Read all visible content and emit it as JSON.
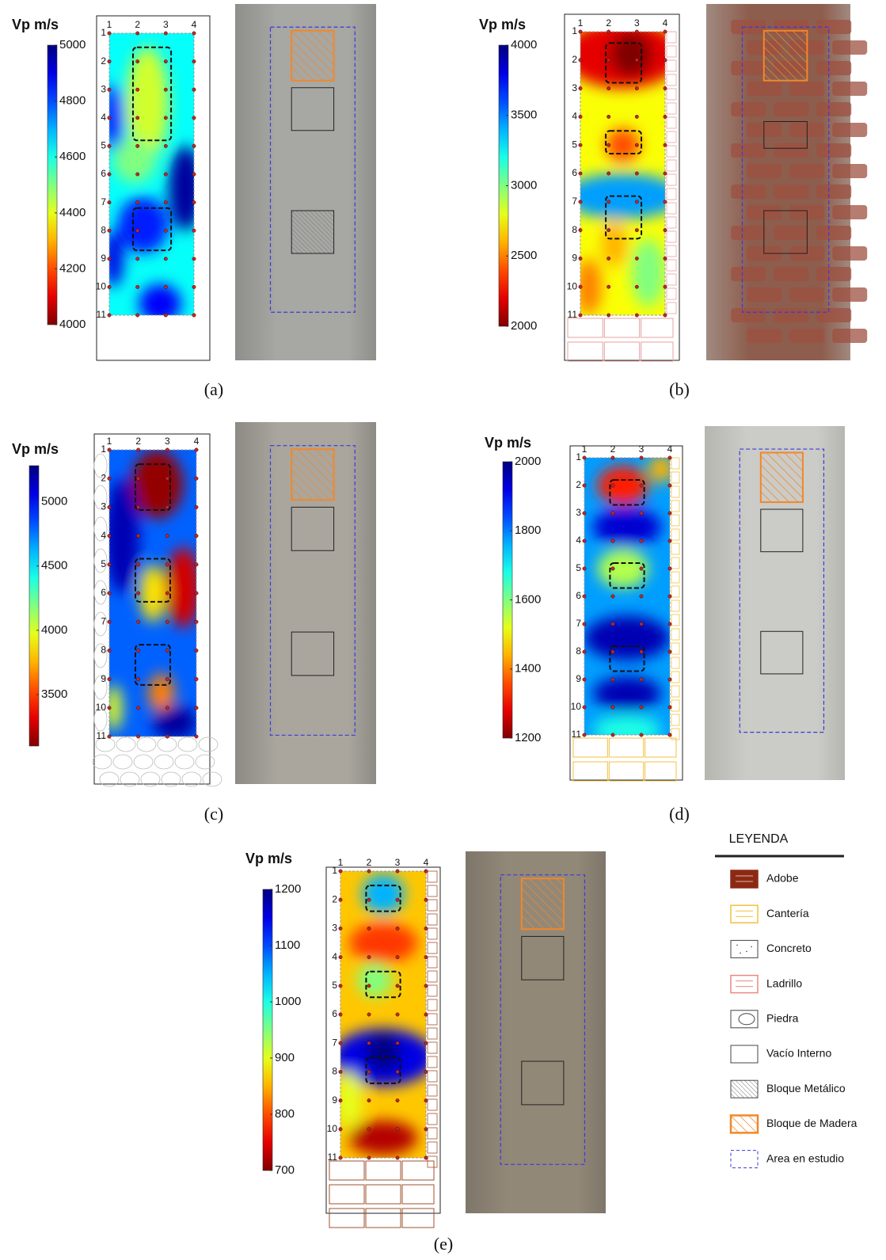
{
  "panels": [
    {
      "colorbar_label": "Vp m/s",
      "ylim": [
        4000,
        5000
      ],
      "yticks": [
        4000,
        4200,
        4400,
        4600,
        4800,
        5000
      ],
      "caption": "(a)",
      "columns": [
        1,
        2,
        3,
        4
      ],
      "rows": [
        1,
        2,
        3,
        4,
        5,
        6,
        7,
        8,
        9,
        10,
        11
      ]
    },
    {
      "colorbar_label": "Vp m/s",
      "ylim": [
        2000,
        4000
      ],
      "yticks": [
        2000,
        2500,
        3000,
        3500,
        4000
      ],
      "caption": "(b)",
      "columns": [
        1,
        2,
        3,
        4
      ],
      "rows": [
        1,
        2,
        3,
        4,
        5,
        6,
        7,
        8,
        9,
        10,
        11
      ]
    },
    {
      "colorbar_label": "Vp m/s",
      "ylim": [
        3100,
        5280
      ],
      "yticks": [
        3500,
        4000,
        4500,
        5000
      ],
      "caption": "(c)",
      "columns": [
        1,
        2,
        3,
        4
      ],
      "rows": [
        1,
        2,
        3,
        4,
        5,
        6,
        7,
        8,
        9,
        10,
        11
      ]
    },
    {
      "colorbar_label": "Vp m/s",
      "ylim": [
        1200,
        2000
      ],
      "yticks": [
        1200,
        1400,
        1600,
        1800,
        2000
      ],
      "caption": "(d)",
      "columns": [
        1,
        2,
        3,
        4
      ],
      "rows": [
        1,
        2,
        3,
        4,
        5,
        6,
        7,
        8,
        9,
        10,
        11
      ]
    },
    {
      "colorbar_label": "Vp m/s",
      "ylim": [
        700,
        1200
      ],
      "yticks": [
        700,
        800,
        900,
        1000,
        1100,
        1200
      ],
      "caption": "(e)",
      "columns": [
        1,
        2,
        3,
        4
      ],
      "rows": [
        1,
        2,
        3,
        4,
        5,
        6,
        7,
        8,
        9,
        10,
        11
      ]
    }
  ],
  "legend": {
    "title": "LEYENDA",
    "items": [
      "Adobe",
      "Cantería",
      "Concreto",
      "Ladrillo",
      "Piedra",
      "Vacío Interno",
      "Bloque Metálico",
      "Bloque de Madera",
      "Area en estudio"
    ]
  }
}
